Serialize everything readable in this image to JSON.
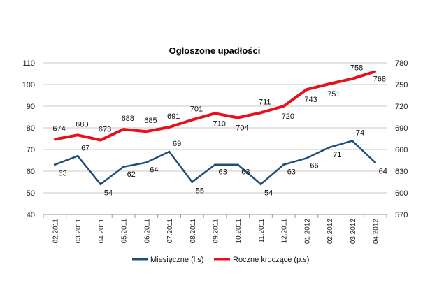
{
  "chart_data": {
    "type": "line",
    "title": "Ogłoszone upadłości",
    "categories": [
      "02.2011",
      "03.2011",
      "04.2011",
      "05.2011",
      "06.2011",
      "07.2011",
      "08.2011",
      "09.2011",
      "10.2011",
      "11.2011",
      "12.2011",
      "01.2012",
      "02.2012",
      "03.2012",
      "04.2012"
    ],
    "y_left": {
      "min": 40,
      "max": 110,
      "step": 10,
      "ticks": [
        "40",
        "50",
        "60",
        "70",
        "80",
        "90",
        "100",
        "110"
      ]
    },
    "y_right": {
      "min": 570,
      "max": 780,
      "step": 30,
      "ticks": [
        "570",
        "600",
        "630",
        "660",
        "690",
        "720",
        "750",
        "780"
      ]
    },
    "grid": true,
    "legend": "bottom",
    "series": [
      {
        "name": "Miesięczne (l.s)",
        "axis": "left",
        "color": "#1f4e79",
        "values": [
          63,
          67,
          54,
          62,
          64,
          69,
          55,
          63,
          63,
          54,
          63,
          66,
          71,
          74,
          64
        ]
      },
      {
        "name": "Roczne kroczące (p.s)",
        "axis": "right",
        "color": "#e8101a",
        "values": [
          674,
          680,
          673,
          688,
          685,
          691,
          701,
          710,
          704,
          711,
          720,
          743,
          751,
          758,
          768
        ]
      }
    ]
  }
}
